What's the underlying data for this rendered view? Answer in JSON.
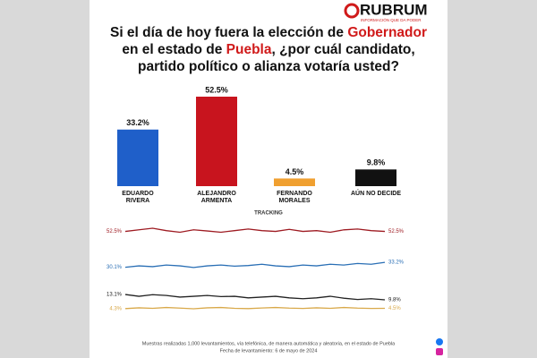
{
  "logo": {
    "name": "RUBRUM",
    "tagline": "INFORMACIÓN QUE DA PODER"
  },
  "title_parts": [
    "Si el día de hoy fuera la elección de ",
    "Gobernador",
    " en el estado de ",
    "Puebla",
    ", ¿por cuál candidato, partido político o alianza votaría usted?"
  ],
  "chart_data": [
    {
      "type": "bar",
      "categories": [
        "EDUARDO RIVERA",
        "ALEJANDRO ARMENTA",
        "FERNANDO MORALES",
        "AÚN NO DECIDE"
      ],
      "values": [
        33.2,
        52.5,
        4.5,
        9.8
      ],
      "value_labels": [
        "33.2%",
        "52.5%",
        "4.5%",
        "9.8%"
      ],
      "colors": [
        "#1f5fc9",
        "#c8141e",
        "#f0a030",
        "#111111"
      ]
    },
    {
      "type": "line",
      "title": "TRACKING",
      "series": [
        {
          "name": "ALEJANDRO ARMENTA",
          "color": "#9e1b22",
          "values": [
            52.5,
            53.5,
            54.5,
            53,
            52,
            53.5,
            52.8,
            52,
            53,
            54,
            53,
            52.5,
            53.8,
            52.5,
            53,
            52,
            53.5,
            54,
            53,
            52.5
          ],
          "value_labels": [
            "52.5%",
            null,
            null,
            null,
            null,
            null,
            null,
            null,
            null,
            null,
            null,
            null,
            null,
            null,
            null,
            null,
            null,
            null,
            null,
            "52.5%"
          ]
        },
        {
          "name": "EDUARDO RIVERA",
          "color": "#2a6fb5",
          "values": [
            30.1,
            31,
            30.5,
            31.5,
            31,
            30,
            31,
            31.5,
            30.8,
            31.2,
            32,
            31,
            30.5,
            31.5,
            31,
            32,
            31.5,
            32.5,
            32,
            33.2
          ],
          "value_labels": [
            "30.1%",
            null,
            null,
            null,
            null,
            null,
            null,
            null,
            null,
            null,
            null,
            null,
            null,
            null,
            null,
            null,
            null,
            null,
            null,
            "33.2%"
          ]
        },
        {
          "name": "AÚN NO DECIDE",
          "color": "#222222",
          "values": [
            13.1,
            12,
            13,
            12.5,
            11.5,
            12,
            12.5,
            11.8,
            12,
            11,
            11.5,
            12,
            11,
            10.5,
            11,
            12,
            10.8,
            10,
            10.5,
            9.8
          ],
          "value_labels": [
            "13.1%",
            null,
            null,
            null,
            null,
            null,
            null,
            null,
            null,
            null,
            null,
            null,
            null,
            null,
            null,
            null,
            null,
            null,
            null,
            "9.8%"
          ]
        },
        {
          "name": "FERNANDO MORALES",
          "color": "#d9a94a",
          "values": [
            4.3,
            4.8,
            4.5,
            5,
            4.6,
            4.2,
            4.8,
            5,
            4.5,
            4.3,
            4.7,
            5,
            4.6,
            4.4,
            4.8,
            4.5,
            5,
            4.6,
            4.4,
            4.5
          ],
          "value_labels": [
            "4.3%",
            null,
            null,
            null,
            null,
            null,
            null,
            null,
            null,
            null,
            null,
            null,
            null,
            null,
            null,
            null,
            null,
            null,
            null,
            "4.5%"
          ]
        }
      ]
    }
  ],
  "footer": [
    "Muestras realizadas 1,000 levantamientos, vía telefónica, de manera automática y aleatoria, en el estado de Puebla",
    "Fecha de levantamiento: 6 de mayo de 2024"
  ]
}
